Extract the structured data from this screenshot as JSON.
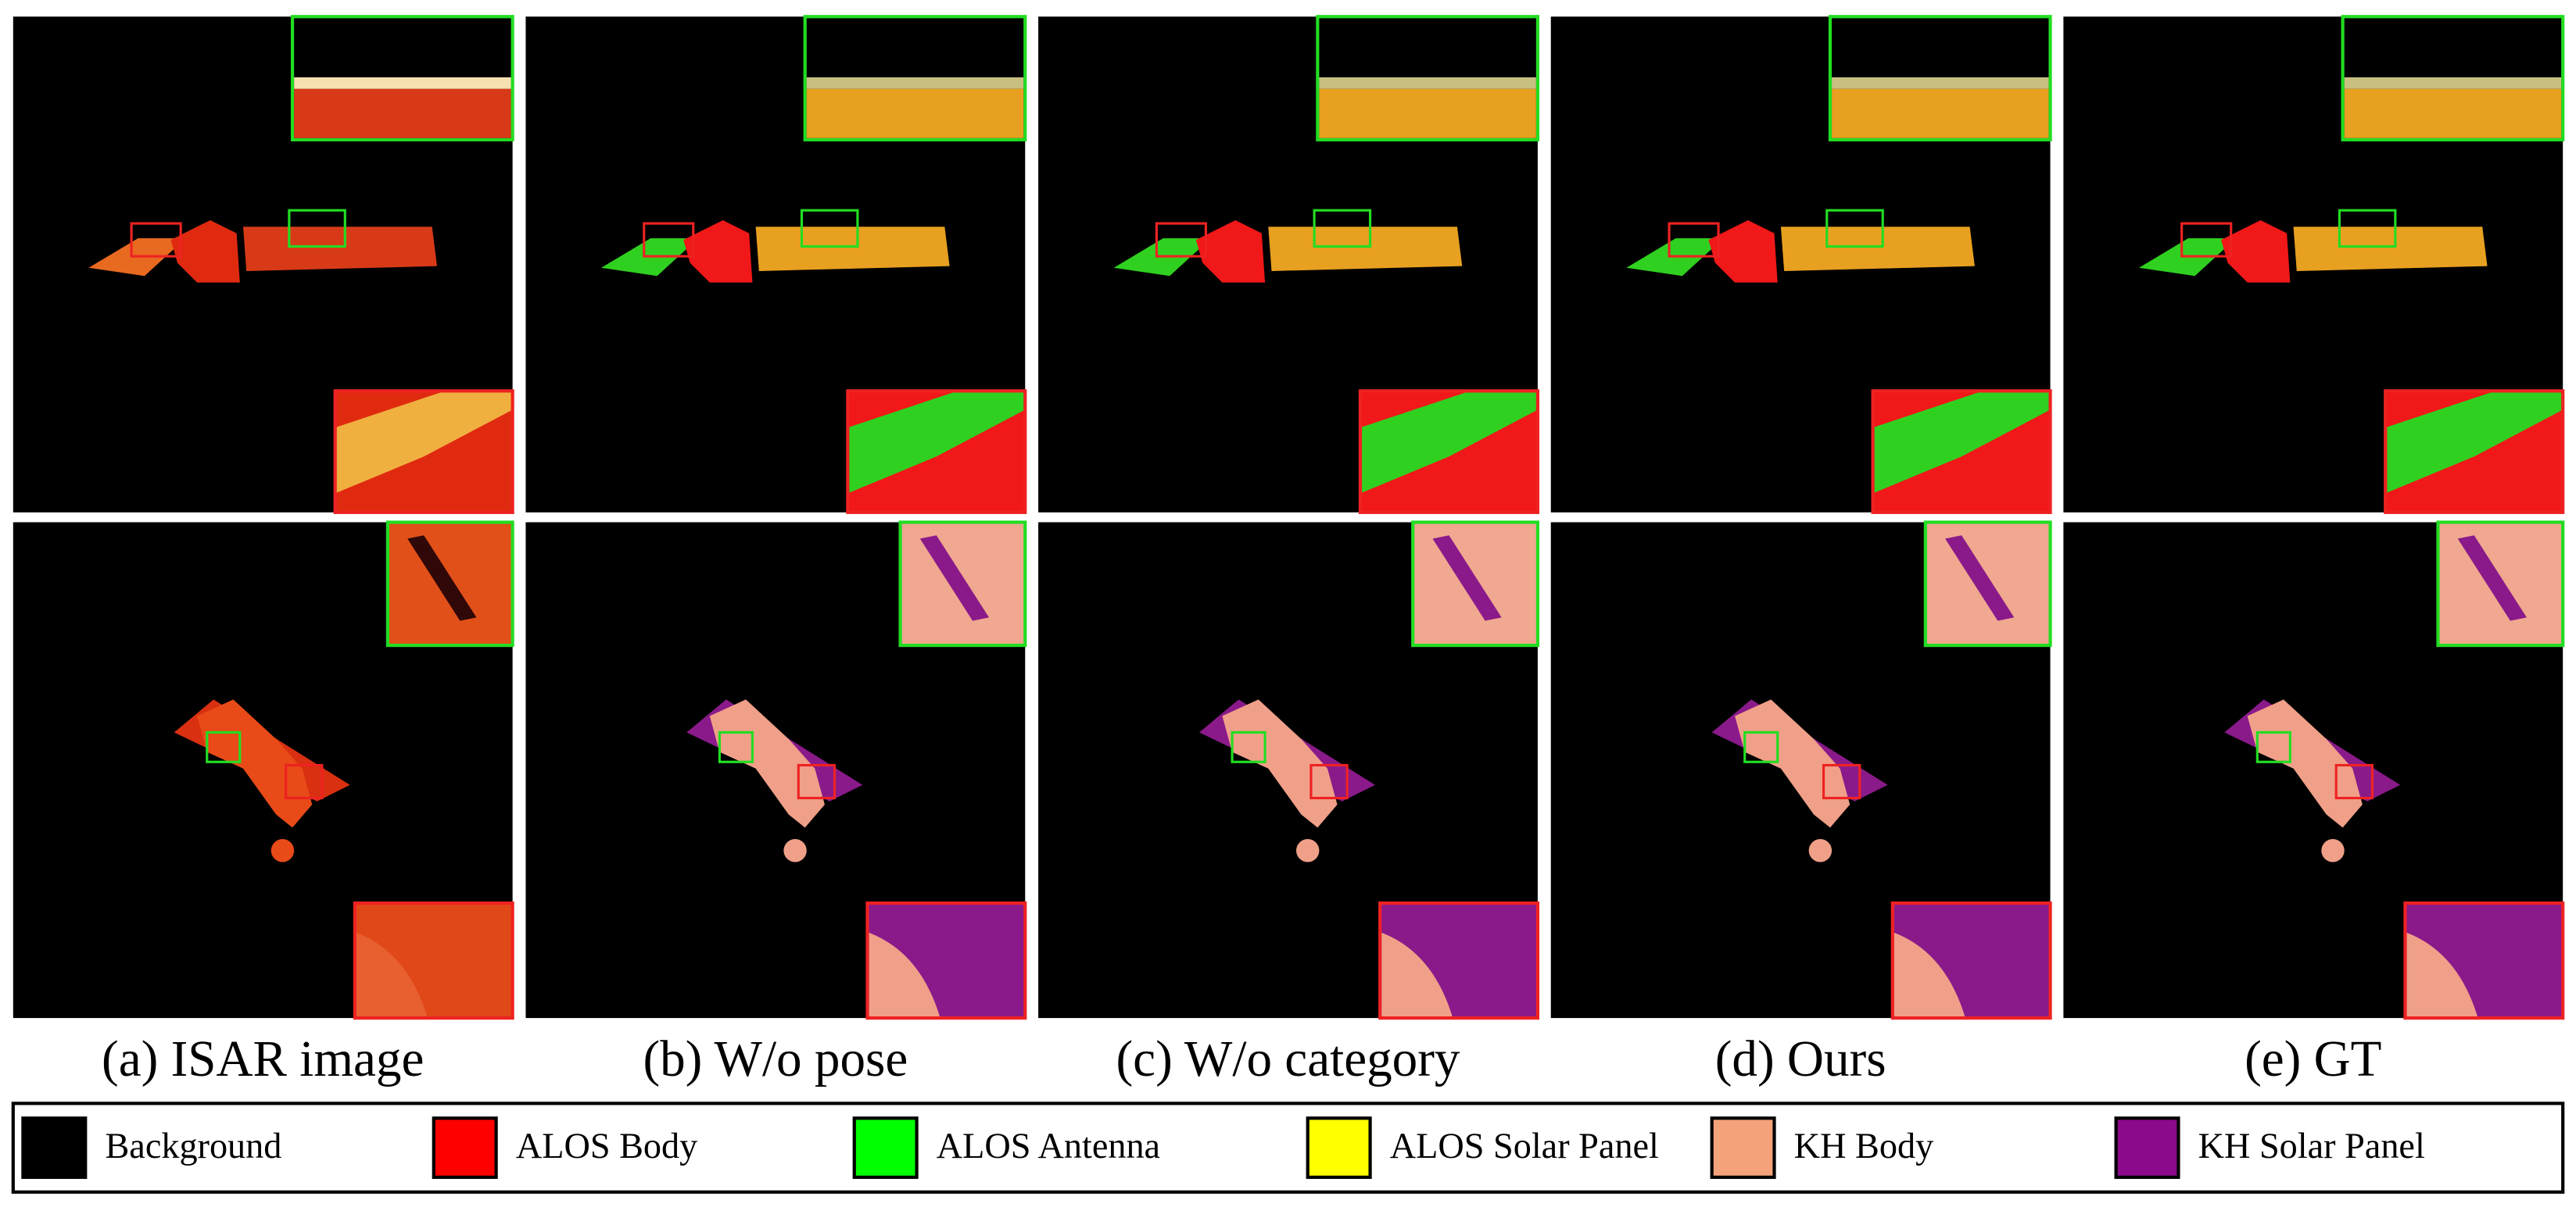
{
  "columns": [
    {
      "caption": "(a) ISAR image"
    },
    {
      "caption": "(b) W/o pose"
    },
    {
      "caption": "(c) W/o category"
    },
    {
      "caption": "(d) Ours"
    },
    {
      "caption": "(e) GT"
    }
  ],
  "legend": [
    {
      "label": "Background",
      "color": "#000000"
    },
    {
      "label": "ALOS Body",
      "color": "#ff0000"
    },
    {
      "label": "ALOS Antenna",
      "color": "#00ff00"
    },
    {
      "label": "ALOS Solar Panel",
      "color": "#ffff00"
    },
    {
      "label": "KH Body",
      "color": "#f4a27a"
    },
    {
      "label": "KH Solar Panel",
      "color": "#8b0a8b"
    }
  ]
}
